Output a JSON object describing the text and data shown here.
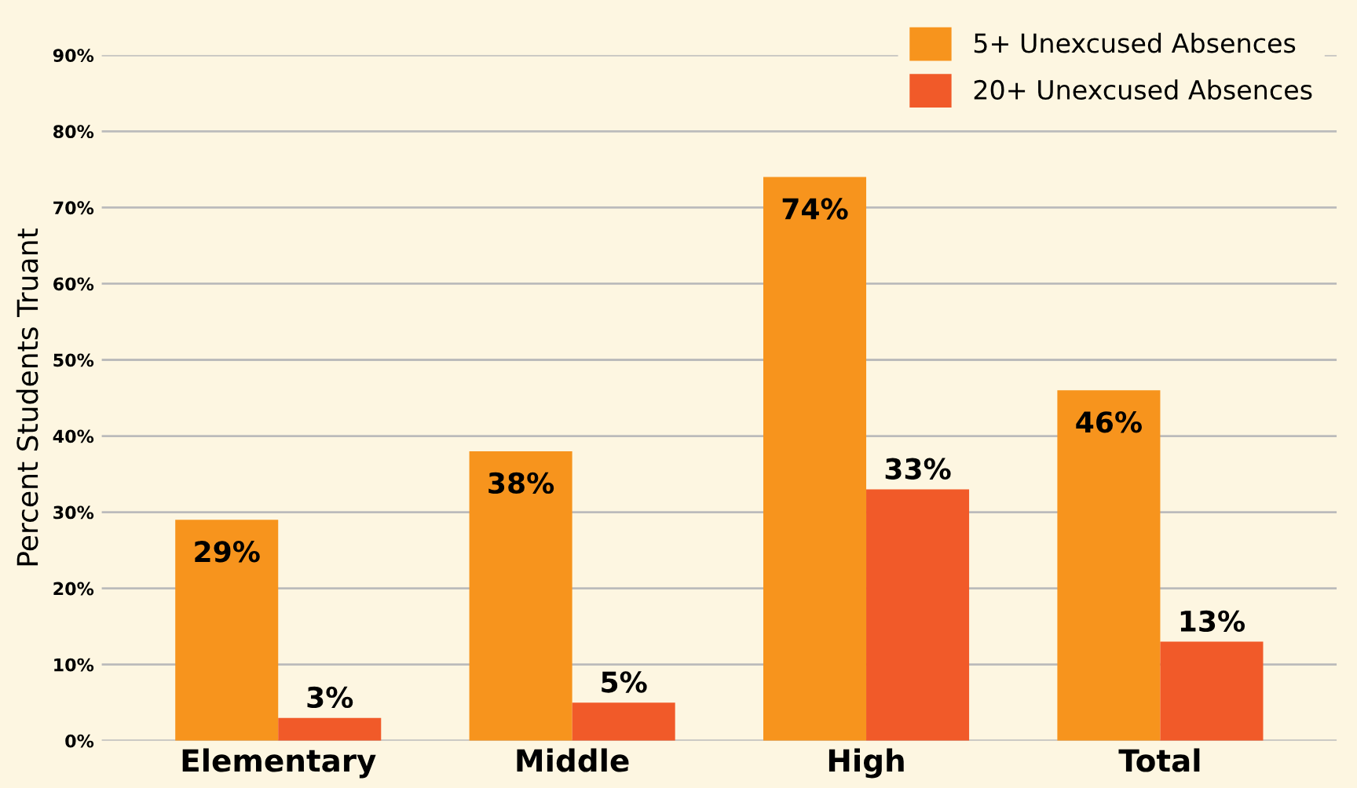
{
  "chart_data": {
    "type": "bar",
    "ylabel": "Percent Students Truant",
    "categories": [
      "Elementary",
      "Middle",
      "High",
      "Total"
    ],
    "series": [
      {
        "name": "5+ Unexcused Absences",
        "color": "#f7941d",
        "values": [
          29,
          38,
          74,
          46
        ],
        "value_labels": [
          "29%",
          "38%",
          "74%",
          "46%"
        ]
      },
      {
        "name": "20+ Unexcused Absences",
        "color": "#f15a29",
        "values": [
          3,
          5,
          33,
          13
        ],
        "value_labels": [
          "3%",
          "5%",
          "33%",
          "13%"
        ]
      }
    ],
    "ylim": [
      0,
      90
    ],
    "yticks": [
      {
        "value": 0,
        "label": "0%"
      },
      {
        "value": 10,
        "label": "10%"
      },
      {
        "value": 20,
        "label": "20%"
      },
      {
        "value": 30,
        "label": "30%"
      },
      {
        "value": 40,
        "label": "40%"
      },
      {
        "value": 50,
        "label": "50%"
      },
      {
        "value": 60,
        "label": "60%"
      },
      {
        "value": 70,
        "label": "70%"
      },
      {
        "value": 80,
        "label": "80%"
      },
      {
        "value": 90,
        "label": "90%"
      }
    ],
    "grid": "y",
    "legend": "top right"
  }
}
